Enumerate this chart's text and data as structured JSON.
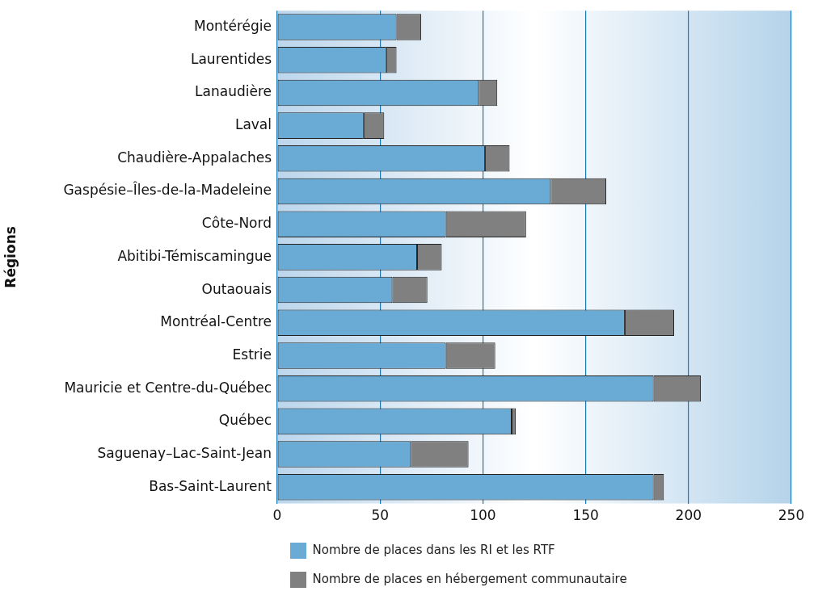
{
  "chart_data": {
    "type": "bar",
    "orientation": "horizontal",
    "stacked": true,
    "ylabel": "Régions",
    "categories": [
      "Montérégie",
      "Laurentides",
      "Lanaudière",
      "Laval",
      "Chaudière-Appalaches",
      "Gaspésie–Îles-de-la-Madeleine",
      "Côte-Nord",
      "Abitibi-Témiscamingue",
      "Outaouais",
      "Montréal-Centre",
      "Estrie",
      "Mauricie et Centre-du-Québec",
      "Québec",
      "Saguenay–Lac-Saint-Jean",
      "Bas-Saint-Laurent"
    ],
    "series": [
      {
        "name": "Nombre de places dans les RI et les RTF",
        "color": "#6aabd6",
        "values": [
          58,
          53,
          98,
          42,
          101,
          133,
          82,
          68,
          56,
          169,
          82,
          183,
          114,
          65,
          183
        ]
      },
      {
        "name": "Nombre de places en hébergement communautaire",
        "color": "#808080",
        "values": [
          12,
          5,
          9,
          10,
          12,
          27,
          39,
          12,
          17,
          24,
          24,
          23,
          2,
          28,
          5
        ]
      }
    ],
    "xlim": [
      0,
      250
    ],
    "xticks": [
      0,
      50,
      100,
      150,
      200,
      250
    ],
    "grid": "x",
    "legend": "bottom"
  }
}
